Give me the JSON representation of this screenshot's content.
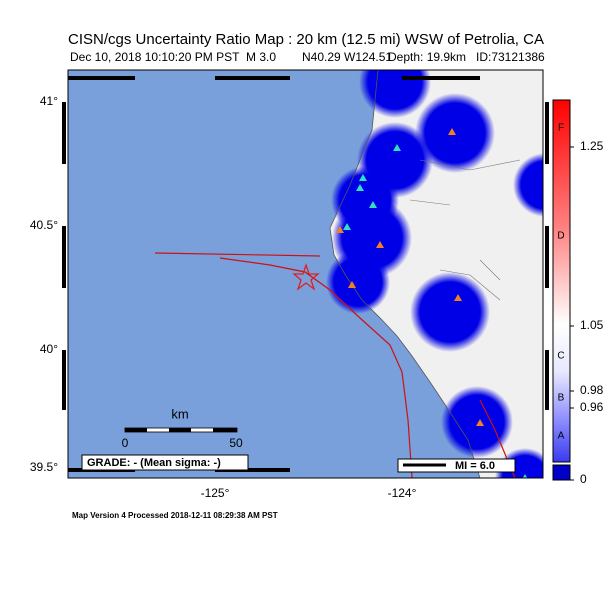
{
  "header": {
    "title": "CISN/cgs Uncertainty Ratio Map : 20 km (12.5 mi) WSW of Petrolia, CA",
    "date": "Dec 10, 2018 10:10:20 PM PST",
    "magnitude": "M 3.0",
    "location": "N40.29 W124.51",
    "depth": "Depth: 19.9km",
    "id": "ID:73121386"
  },
  "map": {
    "lat_labels": [
      "41°",
      "40.5°",
      "40°",
      "39.5°"
    ],
    "lon_labels": [
      "-125°",
      "-124°"
    ],
    "scale": {
      "unit": "km",
      "start": "0",
      "end": "50"
    },
    "grade": "GRADE: - (Mean sigma: -)",
    "mi_legend": "MI = 6.0"
  },
  "colorbar": {
    "ticks": [
      "1.25",
      "1.05",
      "0.98",
      "0.96",
      "0"
    ],
    "letters": [
      "F",
      "D",
      "C",
      "B",
      "A"
    ]
  },
  "footer": "Map Version 4 Processed 2018-12-11 08:29:38 AM PST"
}
